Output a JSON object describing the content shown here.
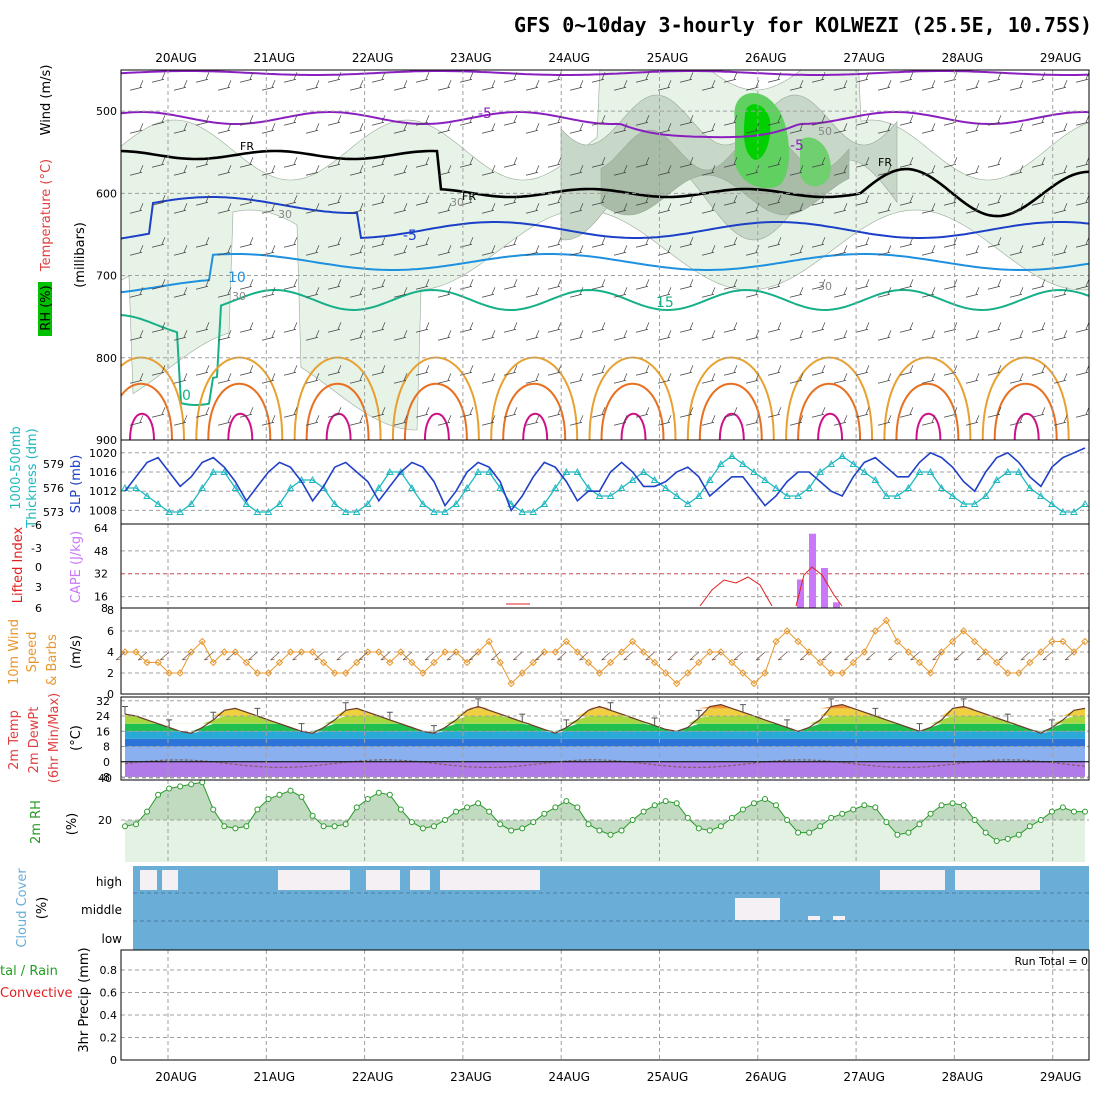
{
  "title": "GFS 0~10day 3-hourly for KOLWEZI (25.5E, 10.75S)",
  "dates": [
    "20AUG",
    "21AUG",
    "22AUG",
    "23AUG",
    "24AUG",
    "25AUG",
    "26AUG",
    "27AUG",
    "28AUG",
    "29AUG"
  ],
  "panel_labels": {
    "upper": [
      "RH (%)",
      "Temperature (°C)",
      "Wind (m/s)",
      "(millibars)"
    ],
    "slp": [
      "1000-500mb",
      "Thickness (dm)",
      "SLP (mb)"
    ],
    "cape": [
      "Lifted Index",
      "CAPE (J/kg)"
    ],
    "wind10": [
      "10m Wind",
      "Speed",
      "& Barbs",
      "(m/s)"
    ],
    "temp2m": [
      "2m Temp",
      "2m DewPt",
      "(6hr Min/Max)",
      "(°C)"
    ],
    "rh2m": [
      "2m RH",
      "(%)"
    ],
    "cloud": [
      "Cloud Cover",
      "(%)"
    ],
    "precip": [
      "tal / Rain",
      "Convective",
      "3hr Precip (mm)"
    ]
  },
  "cloud_levels": [
    "high",
    "middle",
    "low"
  ],
  "run_total": "Run Total = 0",
  "contour_labels": [
    "-5",
    "-5",
    "FR",
    "FR",
    "FR",
    "-5",
    "10",
    "15",
    "0",
    "30",
    "30",
    "30",
    "50",
    "30"
  ],
  "colors": {
    "purple": "#8a1fc0",
    "blue_dark": "#1c3fc8",
    "blue": "#1e90e0",
    "teal": "#16b088",
    "orange": "#e8a030",
    "orange_dark": "#e87020",
    "magenta": "#d0108a",
    "rh_light": "#e6f3e6",
    "rh_mid": "#c8d8c8",
    "rh_dark": "#a8bca8",
    "green": "#00d000",
    "slp": "#2040c8",
    "thick": "#20b8c0",
    "cape": "#c878f8",
    "li": "#e02020",
    "wind": "#e89830",
    "cloud": "#6aaed8",
    "rh2m": "#2a9a2a"
  },
  "chart_data": [
    {
      "type": "line",
      "title": "SLP (mb)",
      "xlabel": "",
      "ylabel": "SLP (mb)",
      "ylim": [
        1006,
        1021
      ],
      "series": [
        {
          "name": "SLP (mb)",
          "values": [
            1012,
            1015,
            1018,
            1019,
            1016,
            1013,
            1015,
            1018,
            1019,
            1017,
            1014,
            1010,
            1013,
            1016,
            1018,
            1017,
            1014,
            1010,
            1013,
            1017,
            1018,
            1016,
            1014,
            1010,
            1013,
            1016,
            1018,
            1017,
            1014,
            1009,
            1012,
            1016,
            1018,
            1017,
            1014,
            1008,
            1011,
            1015,
            1018,
            1017,
            1014,
            1010,
            1012,
            1012,
            1016,
            1018,
            1016,
            1013,
            1013,
            1014,
            1016,
            1017,
            1015,
            1011,
            1013,
            1015,
            1015,
            1012,
            1009,
            1011,
            1014,
            1016,
            1016,
            1014,
            1012,
            1011,
            1015,
            1018,
            1019,
            1017,
            1015,
            1015,
            1018,
            1020,
            1019,
            1017,
            1014,
            1012,
            1016,
            1019,
            1020,
            1018,
            1015,
            1013,
            1017,
            1019,
            1020,
            1021
          ]
        }
      ]
    },
    {
      "type": "line",
      "title": "1000-500mb Thickness (dm)",
      "ylabel": "Thickness (dm)",
      "ylim": [
        572,
        581
      ],
      "series": [
        {
          "name": "1000-500mb Thickness (dm)",
          "values": [
            576,
            576,
            575,
            574,
            573,
            573,
            574,
            576,
            578,
            578,
            576,
            574,
            573,
            573,
            574,
            576,
            577,
            577,
            576,
            574,
            573,
            573,
            574,
            576,
            578,
            578,
            576,
            574,
            573,
            573,
            574,
            576,
            578,
            578,
            576,
            574,
            573,
            573,
            574,
            576,
            578,
            578,
            576,
            575,
            575,
            576,
            577,
            578,
            577,
            576,
            575,
            574,
            575,
            577,
            579,
            580,
            579,
            578,
            577,
            576,
            575,
            575,
            576,
            578,
            579,
            580,
            579,
            578,
            577,
            575,
            575,
            576,
            578,
            578,
            576,
            575,
            574,
            574,
            575,
            577,
            578,
            578,
            576,
            575,
            574,
            573,
            573,
            574
          ]
        }
      ]
    },
    {
      "type": "bar",
      "title": "CAPE (J/kg)",
      "ylabel": "CAPE (J/kg)",
      "ylim": [
        8,
        64
      ],
      "categories": [
        "26AUG 06",
        "26AUG 09",
        "26AUG 12",
        "26AUG 15"
      ],
      "values": [
        28,
        60,
        36,
        12
      ]
    },
    {
      "type": "line",
      "title": "10m Wind Speed (m/s)",
      "ylabel": "(m/s)",
      "ylim": [
        0,
        8
      ],
      "series": [
        {
          "name": "10m Wind Speed",
          "values": [
            4,
            4,
            3,
            3,
            2,
            2,
            4,
            5,
            3,
            4,
            4,
            3,
            2,
            2,
            3,
            4,
            4,
            4,
            3,
            2,
            2,
            3,
            4,
            4,
            3,
            4,
            3,
            2,
            3,
            4,
            4,
            3,
            4,
            5,
            3,
            1,
            2,
            3,
            4,
            4,
            5,
            4,
            3,
            2,
            3,
            4,
            5,
            4,
            3,
            2,
            1,
            2,
            3,
            4,
            4,
            3,
            2,
            1,
            2,
            5,
            6,
            5,
            4,
            3,
            2,
            2,
            3,
            4,
            6,
            7,
            5,
            4,
            3,
            2,
            4,
            5,
            6,
            5,
            4,
            3,
            2,
            2,
            3,
            4,
            5,
            5,
            4,
            5
          ]
        }
      ]
    },
    {
      "type": "area",
      "title": "2m Temp (°C)",
      "ylabel": "(°C)",
      "ylim": [
        -8,
        34
      ],
      "series": [
        {
          "name": "2m Temp",
          "values": [
            25,
            24,
            22,
            20,
            18,
            16,
            15,
            18,
            22,
            27,
            28,
            26,
            24,
            22,
            20,
            18,
            16,
            15,
            18,
            22,
            27,
            28,
            26,
            24,
            22,
            20,
            18,
            16,
            15,
            18,
            22,
            27,
            29,
            27,
            25,
            23,
            21,
            19,
            17,
            15,
            18,
            22,
            27,
            29,
            27,
            25,
            23,
            21,
            19,
            17,
            16,
            18,
            23,
            29,
            30,
            28,
            26,
            24,
            22,
            20,
            18,
            16,
            18,
            22,
            29,
            30,
            28,
            26,
            24,
            22,
            20,
            18,
            16,
            18,
            22,
            28,
            29,
            27,
            25,
            23,
            21,
            19,
            17,
            15,
            18,
            22,
            27,
            28
          ]
        }
      ]
    },
    {
      "type": "area",
      "title": "2m RH (%)",
      "ylabel": "(%)",
      "ylim": [
        0,
        40
      ],
      "series": [
        {
          "name": "2m RH",
          "values": [
            17,
            18,
            24,
            32,
            35,
            36,
            37,
            38,
            25,
            17,
            16,
            17,
            25,
            30,
            32,
            34,
            31,
            22,
            17,
            17,
            18,
            26,
            30,
            33,
            32,
            25,
            19,
            16,
            17,
            20,
            24,
            26,
            28,
            24,
            18,
            15,
            16,
            19,
            23,
            26,
            29,
            26,
            18,
            15,
            13,
            15,
            20,
            24,
            27,
            29,
            28,
            21,
            16,
            15,
            17,
            21,
            25,
            28,
            30,
            27,
            20,
            14,
            14,
            17,
            21,
            23,
            25,
            27,
            26,
            19,
            13,
            14,
            18,
            23,
            27,
            28,
            27,
            20,
            14,
            10,
            11,
            13,
            17,
            20,
            24,
            26,
            24,
            24
          ]
        }
      ]
    }
  ]
}
